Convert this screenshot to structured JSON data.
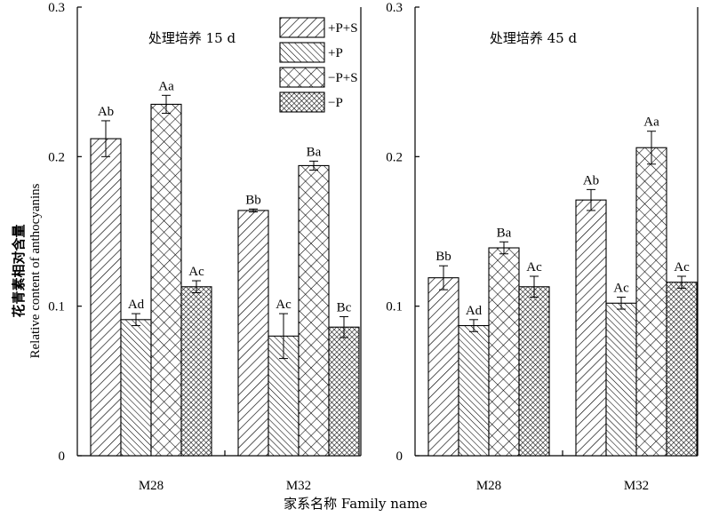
{
  "chart_data": [
    {
      "type": "bar",
      "title": "处理培养 15 d",
      "categories": [
        "M28",
        "M32"
      ],
      "ylim": [
        0,
        0.3
      ],
      "yticks": [
        "0",
        "0.1",
        "0.2",
        "0.3"
      ],
      "series": [
        {
          "name": "+P+S",
          "pattern": "diag-right",
          "values": [
            0.212,
            0.164
          ],
          "errors": [
            0.012,
            0.001
          ],
          "labels": [
            "Ab",
            "Bb"
          ]
        },
        {
          "name": "+P",
          "pattern": "diag-left",
          "values": [
            0.091,
            0.08
          ],
          "errors": [
            0.004,
            0.015
          ],
          "labels": [
            "Ad",
            "Ac"
          ]
        },
        {
          "name": "−P+S",
          "pattern": "cross",
          "values": [
            0.235,
            0.194
          ],
          "errors": [
            0.006,
            0.003
          ],
          "labels": [
            "Aa",
            "Ba"
          ]
        },
        {
          "name": "−P",
          "pattern": "fine-cross",
          "values": [
            0.113,
            0.086
          ],
          "errors": [
            0.004,
            0.007
          ],
          "labels": [
            "Ac",
            "Bc"
          ]
        }
      ]
    },
    {
      "type": "bar",
      "title": "处理培养 45 d",
      "categories": [
        "M28",
        "M32"
      ],
      "ylim": [
        0,
        0.3
      ],
      "yticks": [
        "0",
        "0.1",
        "0.2",
        "0.3"
      ],
      "series": [
        {
          "name": "+P+S",
          "pattern": "diag-right",
          "values": [
            0.119,
            0.171
          ],
          "errors": [
            0.008,
            0.007
          ],
          "labels": [
            "Bb",
            "Ab"
          ]
        },
        {
          "name": "+P",
          "pattern": "diag-left",
          "values": [
            0.087,
            0.102
          ],
          "errors": [
            0.004,
            0.004
          ],
          "labels": [
            "Ad",
            "Ac"
          ]
        },
        {
          "name": "−P+S",
          "pattern": "cross",
          "values": [
            0.139,
            0.206
          ],
          "errors": [
            0.004,
            0.011
          ],
          "labels": [
            "Ba",
            "Aa"
          ]
        },
        {
          "name": "−P",
          "pattern": "fine-cross",
          "values": [
            0.113,
            0.116
          ],
          "errors": [
            0.007,
            0.004
          ],
          "labels": [
            "Ac",
            "Ac"
          ]
        }
      ]
    }
  ],
  "ylabel_cn": "花青素相对含量",
  "ylabel_en": "Relative content of anthocyanins",
  "xlabel": "家系名称 Family name",
  "legend": [
    "+P+S",
    "+P",
    "−P+S",
    "−P"
  ]
}
